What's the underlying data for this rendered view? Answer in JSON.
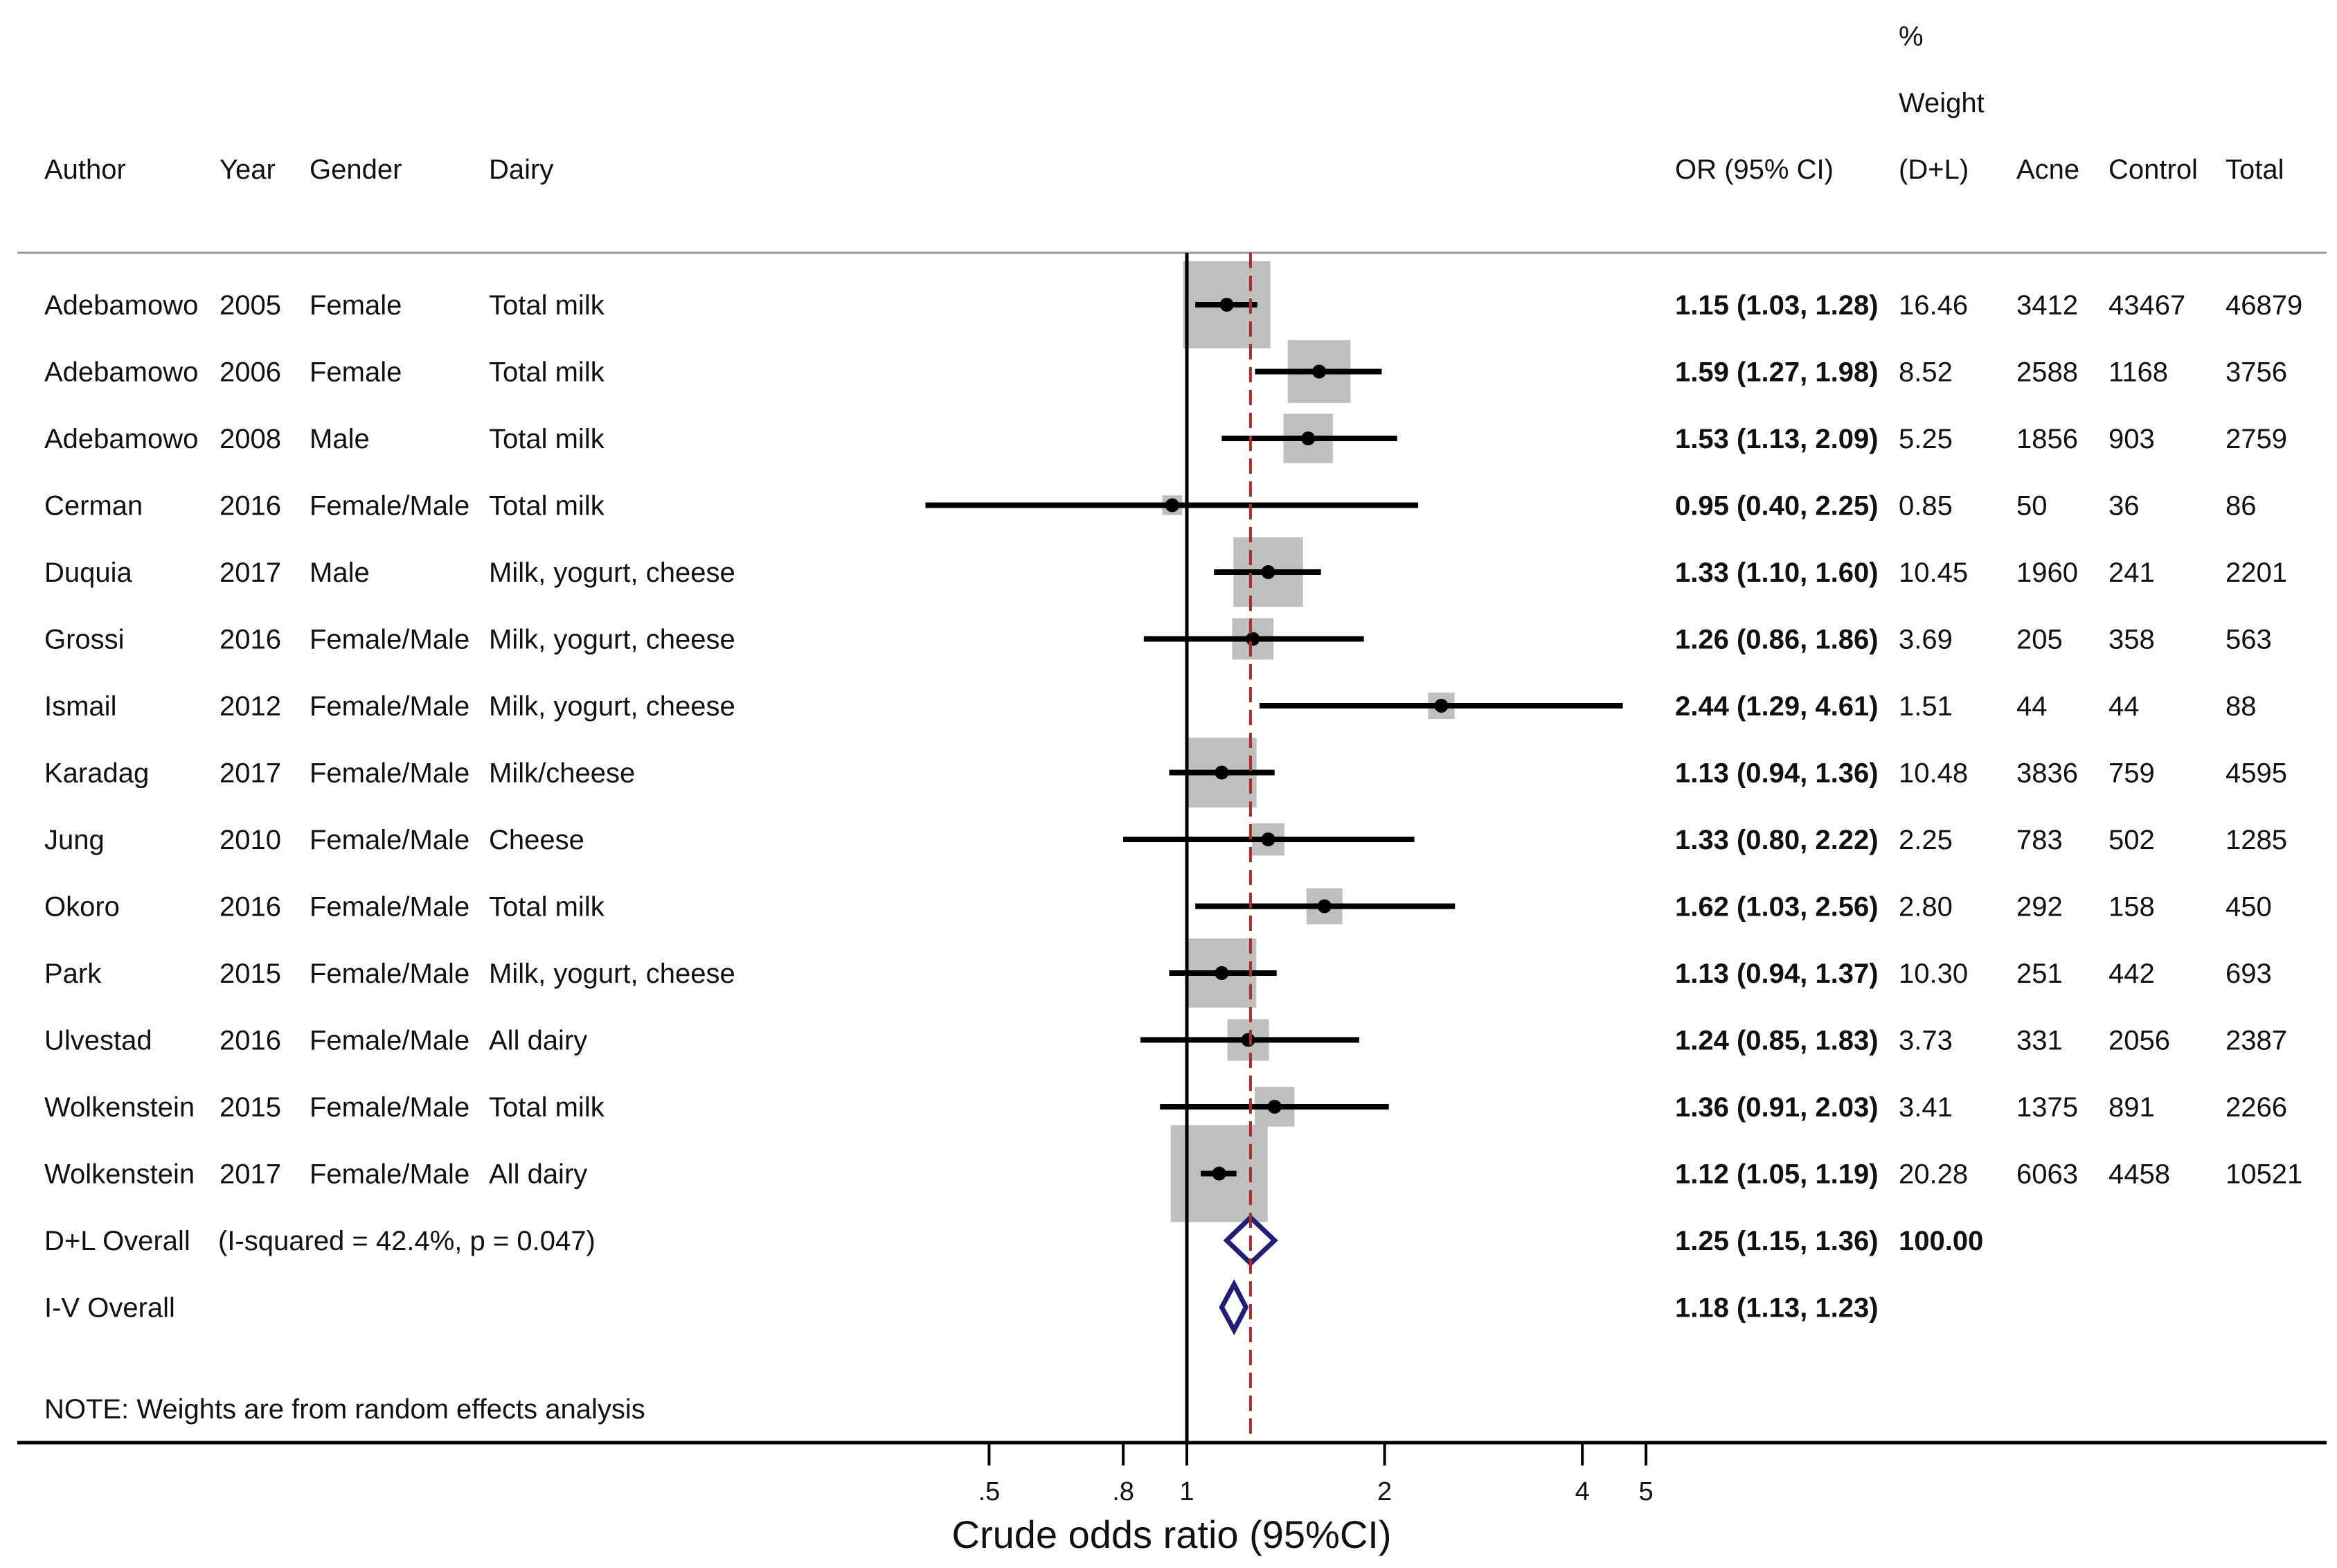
{
  "headers": {
    "author": "Author",
    "year": "Year",
    "gender": "Gender",
    "dairy": "Dairy",
    "or": "OR (95% CI)",
    "weight_1": "%",
    "weight_2": "Weight",
    "weight_3": "(D+L)",
    "acne": "Acne",
    "control": "Control",
    "total": "Total"
  },
  "studies": [
    {
      "author": "Adebamowo",
      "year": "2005",
      "gender": "Female",
      "dairy": "Total milk",
      "or_text": "1.15 (1.03, 1.28)",
      "weight_text": "16.46",
      "acne": "3412",
      "control": "43467",
      "total": "46879",
      "or": 1.15,
      "lo": 1.03,
      "hi": 1.28,
      "weight": 16.46
    },
    {
      "author": "Adebamowo",
      "year": "2006",
      "gender": "Female",
      "dairy": "Total milk",
      "or_text": "1.59 (1.27, 1.98)",
      "weight_text": "8.52",
      "acne": "2588",
      "control": "1168",
      "total": "3756",
      "or": 1.59,
      "lo": 1.27,
      "hi": 1.98,
      "weight": 8.52
    },
    {
      "author": "Adebamowo",
      "year": "2008",
      "gender": "Male",
      "dairy": "Total milk",
      "or_text": "1.53 (1.13, 2.09)",
      "weight_text": "5.25",
      "acne": "1856",
      "control": "903",
      "total": "2759",
      "or": 1.53,
      "lo": 1.13,
      "hi": 2.09,
      "weight": 5.25
    },
    {
      "author": "Cerman",
      "year": "2016",
      "gender": "Female/Male",
      "dairy": "Total milk",
      "or_text": "0.95 (0.40, 2.25)",
      "weight_text": "0.85",
      "acne": "50",
      "control": "36",
      "total": "86",
      "or": 0.95,
      "lo": 0.4,
      "hi": 2.25,
      "weight": 0.85
    },
    {
      "author": "Duquia",
      "year": "2017",
      "gender": "Male",
      "dairy": "Milk, yogurt, cheese",
      "or_text": "1.33 (1.10, 1.60)",
      "weight_text": "10.45",
      "acne": "1960",
      "control": "241",
      "total": "2201",
      "or": 1.33,
      "lo": 1.1,
      "hi": 1.6,
      "weight": 10.45
    },
    {
      "author": "Grossi",
      "year": "2016",
      "gender": "Female/Male",
      "dairy": "Milk, yogurt, cheese",
      "or_text": "1.26 (0.86, 1.86)",
      "weight_text": "3.69",
      "acne": "205",
      "control": "358",
      "total": "563",
      "or": 1.26,
      "lo": 0.86,
      "hi": 1.86,
      "weight": 3.69
    },
    {
      "author": "Ismail",
      "year": "2012",
      "gender": "Female/Male",
      "dairy": "Milk, yogurt, cheese",
      "or_text": "2.44 (1.29, 4.61)",
      "weight_text": "1.51",
      "acne": "44",
      "control": "44",
      "total": "88",
      "or": 2.44,
      "lo": 1.29,
      "hi": 4.61,
      "weight": 1.51
    },
    {
      "author": "Karadag",
      "year": "2017",
      "gender": "Female/Male",
      "dairy": "Milk/cheese",
      "or_text": "1.13 (0.94, 1.36)",
      "weight_text": "10.48",
      "acne": "3836",
      "control": "759",
      "total": "4595",
      "or": 1.13,
      "lo": 0.94,
      "hi": 1.36,
      "weight": 10.48
    },
    {
      "author": "Jung",
      "year": "2010",
      "gender": "Female/Male",
      "dairy": "Cheese",
      "or_text": "1.33 (0.80, 2.22)",
      "weight_text": "2.25",
      "acne": "783",
      "control": "502",
      "total": "1285",
      "or": 1.33,
      "lo": 0.8,
      "hi": 2.22,
      "weight": 2.25
    },
    {
      "author": "Okoro",
      "year": "2016",
      "gender": "Female/Male",
      "dairy": "Total milk",
      "or_text": "1.62 (1.03, 2.56)",
      "weight_text": "2.80",
      "acne": "292",
      "control": "158",
      "total": "450",
      "or": 1.62,
      "lo": 1.03,
      "hi": 2.56,
      "weight": 2.8
    },
    {
      "author": "Park",
      "year": "2015",
      "gender": "Female/Male",
      "dairy": "Milk, yogurt, cheese",
      "or_text": "1.13 (0.94, 1.37)",
      "weight_text": "10.30",
      "acne": "251",
      "control": "442",
      "total": "693",
      "or": 1.13,
      "lo": 0.94,
      "hi": 1.37,
      "weight": 10.3
    },
    {
      "author": "Ulvestad",
      "year": "2016",
      "gender": "Female/Male",
      "dairy": "All dairy",
      "or_text": "1.24 (0.85, 1.83)",
      "weight_text": "3.73",
      "acne": "331",
      "control": "2056",
      "total": "2387",
      "or": 1.24,
      "lo": 0.85,
      "hi": 1.83,
      "weight": 3.73
    },
    {
      "author": "Wolkenstein",
      "year": "2015",
      "gender": "Female/Male",
      "dairy": "Total milk",
      "or_text": "1.36 (0.91, 2.03)",
      "weight_text": "3.41",
      "acne": "1375",
      "control": "891",
      "total": "2266",
      "or": 1.36,
      "lo": 0.91,
      "hi": 2.03,
      "weight": 3.41
    },
    {
      "author": "Wolkenstein",
      "year": "2017",
      "gender": "Female/Male",
      "dairy": "All dairy",
      "or_text": "1.12 (1.05, 1.19)",
      "weight_text": "20.28",
      "acne": "6063",
      "control": "4458",
      "total": "10521",
      "or": 1.12,
      "lo": 1.05,
      "hi": 1.19,
      "weight": 20.28
    }
  ],
  "overall": [
    {
      "label": "D+L Overall",
      "note": "(I-squared = 42.4%, p = 0.047)",
      "or_text": "1.25 (1.15, 1.36)",
      "weight_text": "100.00",
      "or": 1.25,
      "lo": 1.15,
      "hi": 1.36
    },
    {
      "label": "I-V Overall",
      "note": "",
      "or_text": "1.18 (1.13, 1.23)",
      "weight_text": "",
      "or": 1.18,
      "lo": 1.13,
      "hi": 1.23
    }
  ],
  "note": "NOTE: Weights are from random effects analysis",
  "colors": {
    "box": "#bfbfbf",
    "line": "#000000",
    "diamond": "#1f1f7a",
    "dashed": "#b02a2a"
  },
  "chart_data": {
    "type": "forest",
    "scale": "log",
    "xlabel": "Crude odds ratio (95%CI)",
    "ticks": [
      0.5,
      0.8,
      1,
      2,
      4,
      5
    ],
    "tick_labels": [
      ".5",
      ".8",
      "1",
      "2",
      "4",
      "5"
    ],
    "null_line": 1,
    "pooled_line": 1.25
  }
}
